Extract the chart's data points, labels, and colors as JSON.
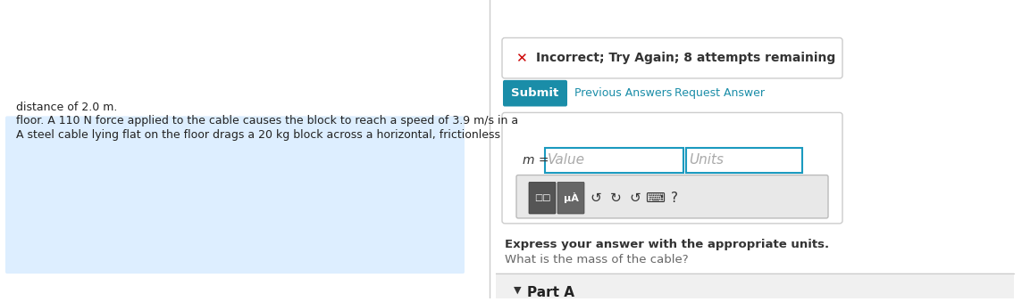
{
  "left_bg_color": "#ddeeff",
  "left_text_lines": [
    "A steel cable lying flat on the floor drags a 20 kg block across a horizontal, frictionless",
    "floor. A 110 N force applied to the cable causes the block to reach a speed of 3.9 m/s in a",
    "distance of 2.0 m."
  ],
  "left_text_underline_words": [
    "kg",
    "N",
    "m/s",
    "m"
  ],
  "right_bg_color": "#f5f5f5",
  "part_a_label": "Part A",
  "question_text": "What is the mass of the cable?",
  "express_text": "Express your answer with the appropriate units.",
  "input_box_border": "#1a9abf",
  "value_placeholder": "Value",
  "units_placeholder": "Units",
  "m_label": "m =",
  "submit_bg": "#1a8da8",
  "submit_text": "Submit",
  "submit_text_color": "#ffffff",
  "prev_answers_text": "Previous Answers",
  "request_answer_text": "Request Answer",
  "link_color": "#1a8da8",
  "error_border": "#cccccc",
  "error_x_color": "#cc0000",
  "error_text": "Incorrect; Try Again; 8 attempts remaining",
  "divider_color": "#cccccc",
  "toolbar_bg": "#e8e8e8",
  "toolbar_border": "#bbbbbb",
  "input_area_bg": "#ffffff",
  "outer_box_border": "#cccccc"
}
